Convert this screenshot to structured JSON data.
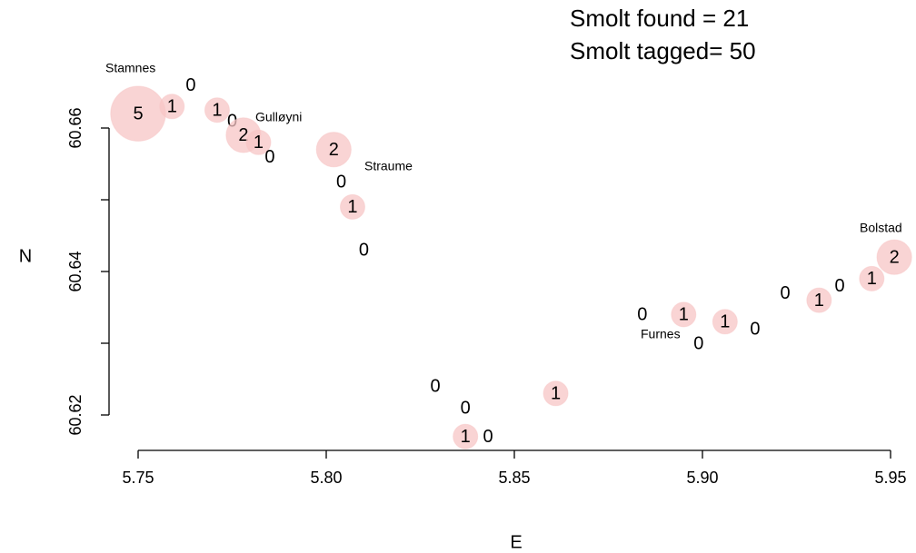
{
  "chart_data": {
    "type": "scatter",
    "x_label": "E",
    "y_label": "N",
    "annotations": [
      "Smolt found = 21",
      "Smolt tagged= 50",
      "Stamnes",
      "Gulløyni",
      "Straume",
      "Bolstad",
      "Furnes"
    ],
    "xlim": [
      5.75,
      5.95
    ],
    "xticks": [
      {
        "value": 5.75,
        "label": "5.75"
      },
      {
        "value": 5.8,
        "label": "5.80"
      },
      {
        "value": 5.85,
        "label": "5.85"
      },
      {
        "value": 5.9,
        "label": "5.90"
      },
      {
        "value": 5.95,
        "label": "5.95"
      }
    ],
    "ylim": [
      60.615,
      60.67
    ],
    "yticks": [
      {
        "value": 60.62,
        "label": "60.62"
      },
      60.63,
      {
        "value": 60.64,
        "label": "60.64"
      },
      60.65,
      {
        "value": 60.66,
        "label": "60.66"
      }
    ],
    "series": [
      {
        "name": "Smolt found",
        "color": "#f7c6c6",
        "x": [
          5.75,
          5.759,
          5.764,
          5.771,
          5.775,
          5.778,
          5.782,
          5.785,
          5.802,
          5.804,
          5.807,
          5.81,
          5.829,
          5.837,
          5.837,
          5.843,
          5.861,
          5.884,
          5.895,
          5.899,
          5.906,
          5.914,
          5.922,
          5.931,
          5.9365,
          5.945,
          5.951
        ],
        "y": [
          60.662,
          60.663,
          60.666,
          60.6625,
          60.661,
          60.659,
          60.658,
          60.656,
          60.657,
          60.6525,
          60.649,
          60.643,
          60.624,
          60.621,
          60.617,
          60.617,
          60.623,
          60.634,
          60.634,
          60.63,
          60.633,
          60.632,
          60.637,
          60.636,
          60.638,
          60.639,
          60.642
        ],
        "sizes": [
          5,
          1,
          0,
          1,
          0,
          2,
          1,
          0,
          2,
          0,
          1,
          0,
          0,
          0,
          1,
          0,
          1,
          0,
          1,
          0,
          1,
          0,
          0,
          1,
          0,
          1,
          2
        ]
      }
    ]
  }
}
